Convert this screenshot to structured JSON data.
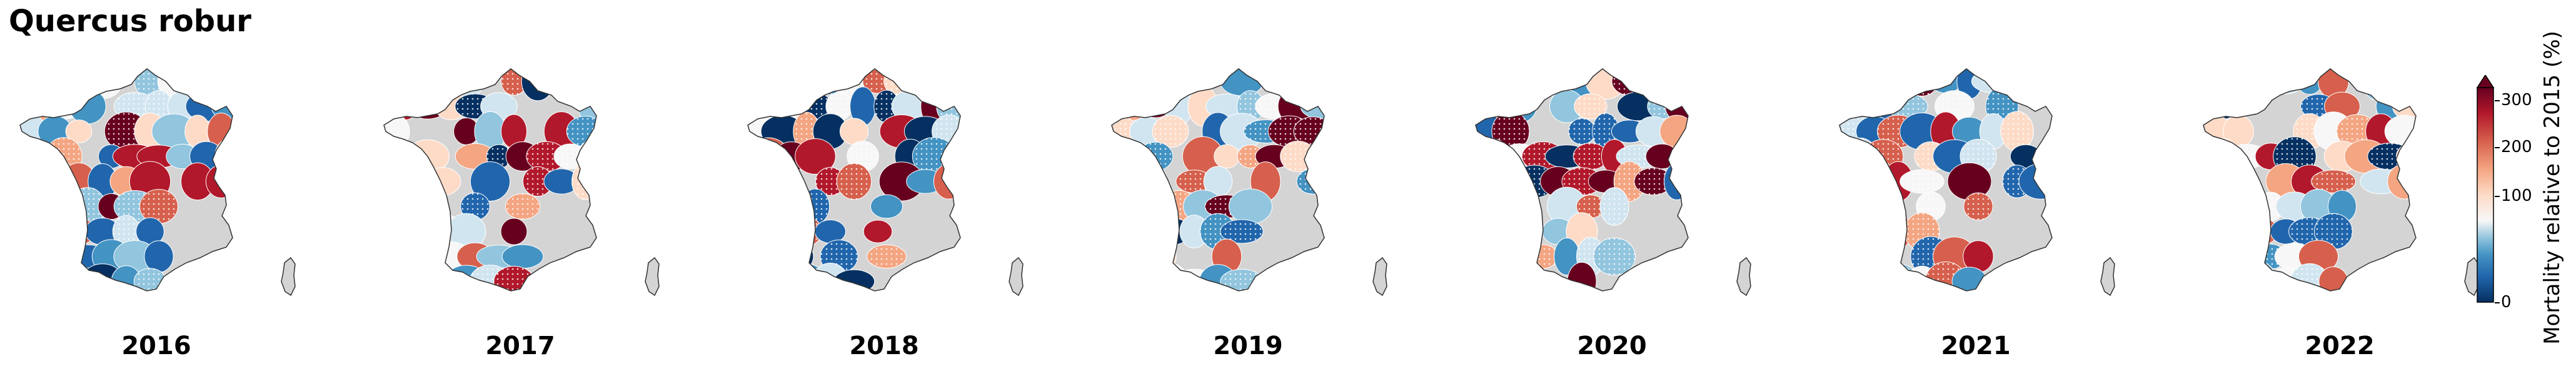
{
  "figure": {
    "title": "Quercus robur"
  },
  "panels": [
    {
      "year": "2016",
      "seed": 3
    },
    {
      "year": "2017",
      "seed": 11
    },
    {
      "year": "2018",
      "seed": 23
    },
    {
      "year": "2019",
      "seed": 37
    },
    {
      "year": "2020",
      "seed": 51
    },
    {
      "year": "2021",
      "seed": 67
    },
    {
      "year": "2022",
      "seed": 83
    }
  ],
  "colorbar": {
    "label": "Mortality relative to 2015 (%)",
    "ticks": [
      "0",
      "100",
      "200",
      "300"
    ],
    "tick_values": [
      0,
      100,
      200,
      300
    ],
    "min": 0,
    "max": 330,
    "extend": "max",
    "colormap": [
      "#053061",
      "#2166ac",
      "#4393c3",
      "#92c5de",
      "#d1e5f0",
      "#f7f7f7",
      "#fddbc7",
      "#f4a582",
      "#d6604d",
      "#b2182b",
      "#67001f"
    ],
    "nodata_color": "#d4d4d4"
  }
}
